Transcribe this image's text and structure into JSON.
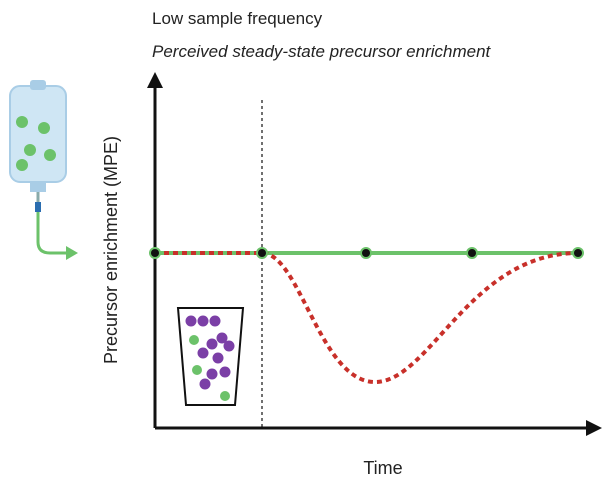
{
  "header": {
    "title": "Low sample frequency",
    "subtitle": "Perceived steady-state precursor enrichment"
  },
  "axes": {
    "y_label": "Precursor enrichment (MPE)",
    "x_label": "Time"
  }
}
